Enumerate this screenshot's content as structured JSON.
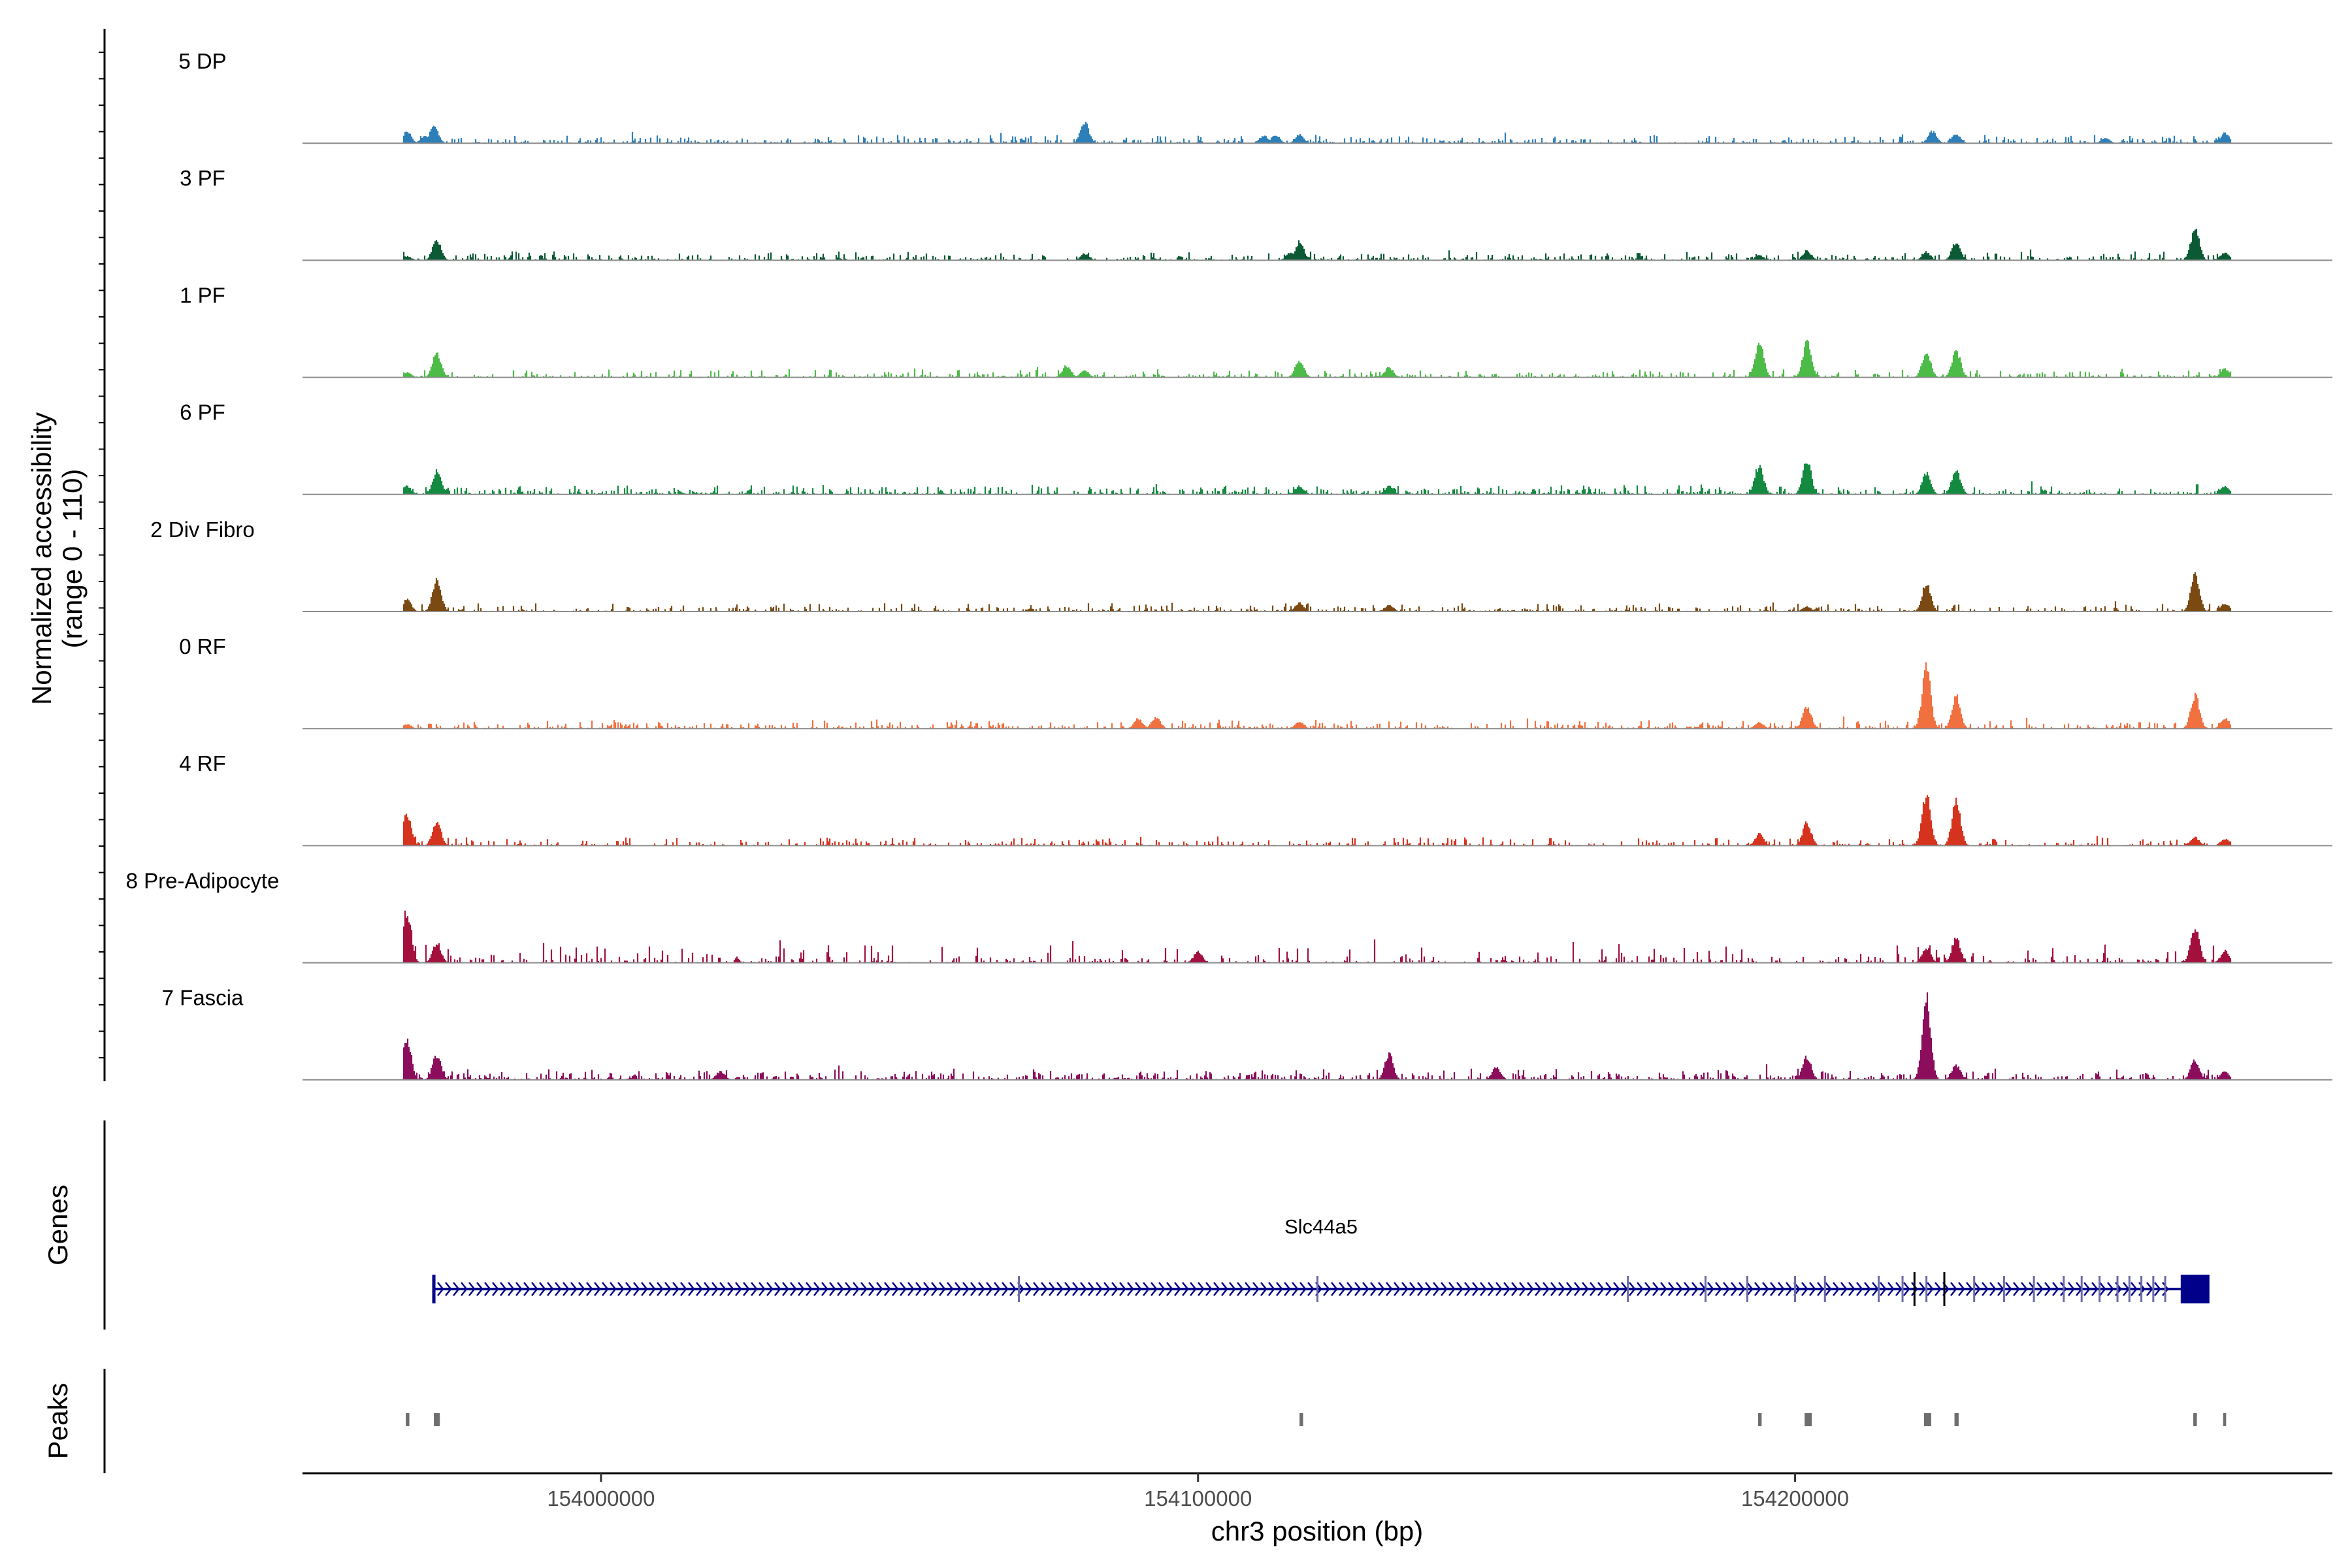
{
  "chart_data": {
    "type": "coverage-track",
    "xlabel": "chr3 position (bp)",
    "xlim": [
      153950000,
      154290000
    ],
    "x_ticks": [
      154000000,
      154100000,
      154200000
    ],
    "y_axis_title_line1": "Normalized accessibility",
    "y_axis_title_line2": "(range 0 - 110)",
    "ylim": [
      0,
      110
    ],
    "tracks": [
      {
        "name": "5 DP",
        "color": "#2c7fb8",
        "noise": 0.02,
        "density": 0.55,
        "peaks": [
          [
            153967500,
            14
          ],
          [
            153972000,
            20
          ],
          [
            153970500,
            8
          ],
          [
            154081000,
            25
          ],
          [
            154111000,
            9
          ],
          [
            154113000,
            10
          ],
          [
            154117000,
            10
          ],
          [
            154223000,
            14
          ],
          [
            154227000,
            11
          ],
          [
            154252000,
            6
          ],
          [
            154272000,
            12
          ],
          [
            154277000,
            5
          ]
        ]
      },
      {
        "name": "3 PF",
        "color": "#0b5a35",
        "noise": 0.02,
        "density": 0.55,
        "peaks": [
          [
            153972500,
            25
          ],
          [
            153967500,
            5
          ],
          [
            154081000,
            8
          ],
          [
            154117000,
            22
          ],
          [
            154115500,
            10
          ],
          [
            154194000,
            6
          ],
          [
            154202000,
            12
          ],
          [
            154222000,
            10
          ],
          [
            154227000,
            22
          ],
          [
            154267000,
            37
          ],
          [
            154272000,
            10
          ]
        ]
      },
      {
        "name": "1 PF",
        "color": "#4cbb47",
        "noise": 0.02,
        "density": 0.45,
        "peaks": [
          [
            153967500,
            6
          ],
          [
            153972500,
            28
          ],
          [
            154078000,
            14
          ],
          [
            154081000,
            8
          ],
          [
            154117000,
            20
          ],
          [
            154132000,
            12
          ],
          [
            154194000,
            42
          ],
          [
            154202000,
            42
          ],
          [
            154222000,
            30
          ],
          [
            154227000,
            32
          ],
          [
            154272000,
            10
          ]
        ]
      },
      {
        "name": "6 PF",
        "color": "#138a40",
        "noise": 0.025,
        "density": 0.6,
        "peaks": [
          [
            153967500,
            10
          ],
          [
            153972500,
            28
          ],
          [
            154117000,
            10
          ],
          [
            154132000,
            10
          ],
          [
            154194000,
            35
          ],
          [
            154202000,
            40
          ],
          [
            154222000,
            25
          ],
          [
            154227000,
            30
          ],
          [
            154272000,
            10
          ]
        ]
      },
      {
        "name": "2 Div Fibro",
        "color": "#7a4a12",
        "noise": 0.02,
        "density": 0.45,
        "peaks": [
          [
            153967500,
            14
          ],
          [
            153972500,
            40
          ],
          [
            154117000,
            10
          ],
          [
            154132000,
            8
          ],
          [
            154202000,
            6
          ],
          [
            154222000,
            33
          ],
          [
            154267000,
            46
          ],
          [
            154272000,
            10
          ]
        ]
      },
      {
        "name": "0 RF",
        "color": "#f0703f",
        "noise": 0.02,
        "density": 0.45,
        "peaks": [
          [
            153967500,
            5
          ],
          [
            154090000,
            12
          ],
          [
            154093000,
            14
          ],
          [
            154117000,
            8
          ],
          [
            154194000,
            8
          ],
          [
            154202000,
            26
          ],
          [
            154222000,
            72
          ],
          [
            154227000,
            38
          ],
          [
            154267000,
            40
          ],
          [
            154272000,
            12
          ]
        ]
      },
      {
        "name": "4 RF",
        "color": "#d6331f",
        "noise": 0.02,
        "density": 0.45,
        "peaks": [
          [
            153967500,
            40
          ],
          [
            153972500,
            30
          ],
          [
            154194000,
            14
          ],
          [
            154202000,
            28
          ],
          [
            154222000,
            63
          ],
          [
            154227000,
            52
          ],
          [
            154267000,
            10
          ],
          [
            154272000,
            8
          ]
        ]
      },
      {
        "name": "8 Pre-Adipocyte",
        "color": "#a3103e",
        "noise": 0.015,
        "density": 0.35,
        "spiky": true,
        "peaks": [
          [
            153967500,
            64
          ],
          [
            153972500,
            24
          ],
          [
            154100000,
            14
          ],
          [
            154222000,
            18
          ],
          [
            154227000,
            30
          ],
          [
            154267000,
            44
          ],
          [
            154272000,
            14
          ]
        ]
      },
      {
        "name": "7 Fascia",
        "color": "#8b0d5b",
        "noise": 0.03,
        "density": 0.6,
        "peaks": [
          [
            153967500,
            48
          ],
          [
            153972500,
            30
          ],
          [
            154020000,
            10
          ],
          [
            154132000,
            30
          ],
          [
            154150000,
            15
          ],
          [
            154202000,
            28
          ],
          [
            154222000,
            100
          ],
          [
            154227000,
            18
          ],
          [
            154267000,
            24
          ],
          [
            154272000,
            10
          ]
        ]
      }
    ],
    "genes_panel_title": "Genes",
    "gene": {
      "name": "Slc44a5",
      "start": 153972000,
      "end": 154267000,
      "strand": "+",
      "color": "#00008b",
      "exons": [
        154070000,
        154120000,
        154172000,
        154185000,
        154192000,
        154200000,
        154205000,
        154214000,
        154218000,
        154222000,
        154225000,
        154230000,
        154235000,
        154240000,
        154245000,
        154248000,
        154251000,
        154254000,
        154256000,
        154258000,
        154260000,
        154262000
      ]
    },
    "peaks_panel_title": "Peaks",
    "peak_regions": [
      [
        153967300,
        153967900
      ],
      [
        153972000,
        153973000
      ],
      [
        154117000,
        154117600
      ],
      [
        154193800,
        154194400
      ],
      [
        154201600,
        154202800
      ],
      [
        154221600,
        154222800
      ],
      [
        154226700,
        154227400
      ],
      [
        154266700,
        154267300
      ],
      [
        154271700,
        154272200
      ]
    ]
  }
}
